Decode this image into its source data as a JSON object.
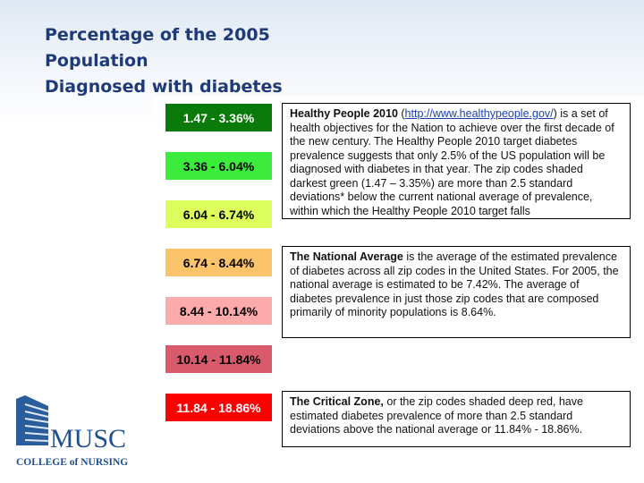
{
  "title": [
    "Percentage of the 2005",
    "Population",
    "Diagnosed with diabetes"
  ],
  "legend": [
    {
      "label": "1.47 - 3.36%",
      "color": "#0a7a0a",
      "text_color": "#ffffff"
    },
    {
      "label": "3.36 - 6.04%",
      "color": "#3cec3c",
      "text_color": "#000000"
    },
    {
      "label": "6.04 - 6.74%",
      "color": "#dcfd5c",
      "text_color": "#000000"
    },
    {
      "label": "6.74 - 8.44%",
      "color": "#fcc46a",
      "text_color": "#000000"
    },
    {
      "label": "8.44 - 10.14%",
      "color": "#fdaaaa",
      "text_color": "#000000"
    },
    {
      "label": "10.14 - 11.84%",
      "color": "#d95b6b",
      "text_color": "#000000"
    },
    {
      "label": "11.84 - 18.86%",
      "color": "#fc0000",
      "text_color": "#ffffff"
    }
  ],
  "boxes": {
    "healthy": {
      "bold": "Healthy People 2010",
      "pre": " (",
      "link": "http://www.healthypeople.gov/",
      "post": ") is a set of health objectives for the Nation to achieve over the first decade of the new century.  The Healthy People 2010 target diabetes prevalence suggests that only 2.5% of the US population will be diagnosed with diabetes in that year.  The zip codes shaded darkest green (1.47 – 3.35%) are more than 2.5 standard deviations* below the current national average of prevalence, within which the Healthy People 2010 target falls"
    },
    "national": {
      "bold": "The National Average",
      "rest": " is the average of the estimated prevalence of diabetes across all zip codes in the United States.  For 2005, the national average is estimated to be 7.42%.  The average of diabetes prevalence in just those zip codes that are composed primarily of minority populations is 8.64%."
    },
    "critical": {
      "bold": "The Critical Zone,",
      "rest": " or the zip codes shaded deep red, have estimated diabetes prevalence of more than 2.5 standard deviations above the national average or 11.84% - 18.86%."
    }
  },
  "logo": {
    "name": "MUSC",
    "subtitle": "COLLEGE of NURSING",
    "color": "#1f4e8c"
  }
}
